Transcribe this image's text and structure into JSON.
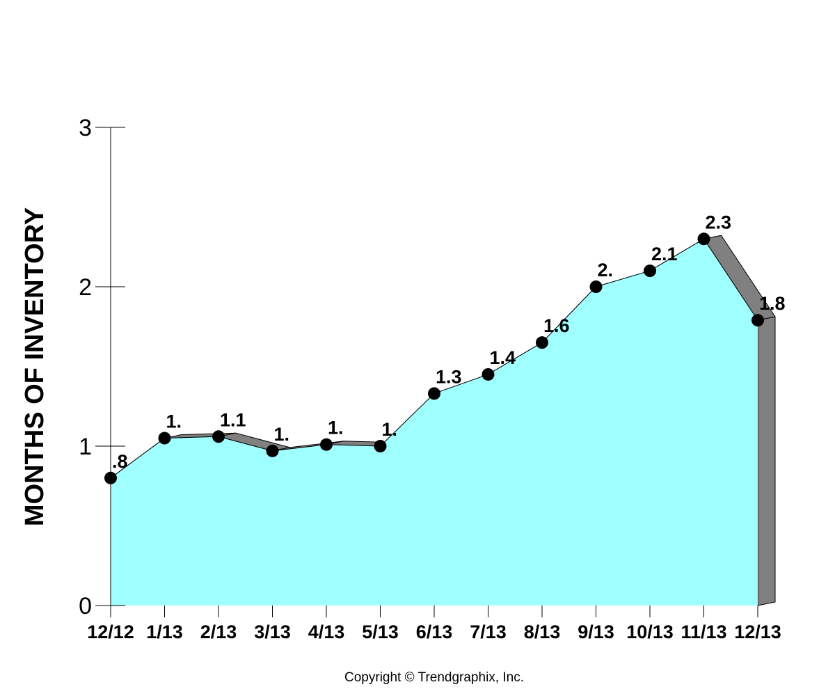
{
  "chart_data": {
    "type": "area",
    "ylabel": "MONTHS OF INVENTORY",
    "xlabel": "",
    "title": "",
    "categories": [
      "12/12",
      "1/13",
      "2/13",
      "3/13",
      "4/13",
      "5/13",
      "6/13",
      "7/13",
      "8/13",
      "9/13",
      "10/13",
      "11/13",
      "12/13"
    ],
    "values": [
      0.8,
      1.05,
      1.06,
      0.97,
      1.01,
      1.0,
      1.33,
      1.45,
      1.65,
      2.0,
      2.1,
      2.3,
      1.79
    ],
    "data_labels": [
      ".8",
      "1.",
      "1.1",
      "1.",
      "1.",
      "1.",
      "1.3",
      "1.4",
      "1.6",
      "2.",
      "2.1",
      "2.3",
      "1.8"
    ],
    "ylim": [
      0,
      3
    ],
    "yticks": [
      "0",
      "1",
      "2",
      "3"
    ],
    "grid": false,
    "colors": {
      "fill": "#a0ffff",
      "shadow": "#808080",
      "marker": "#000000",
      "line": "#000000"
    }
  },
  "footer": {
    "copyright": "Copyright © Trendgraphix, Inc."
  }
}
